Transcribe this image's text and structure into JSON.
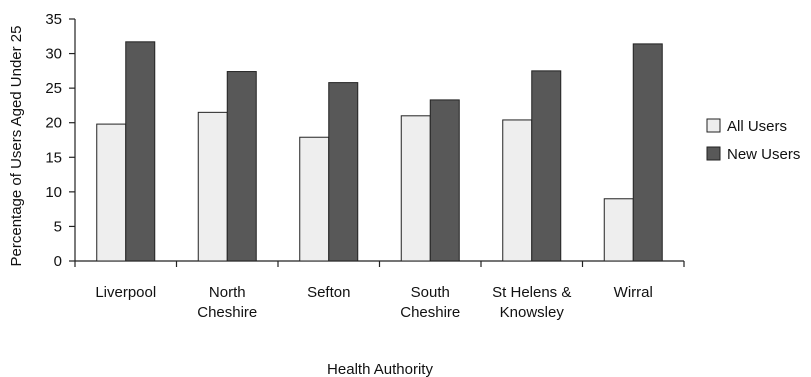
{
  "chart_data": {
    "type": "bar",
    "title": "",
    "xlabel": "Health Authority",
    "ylabel": "Percentage of Users Aged Under 25",
    "ylim": [
      0,
      35
    ],
    "yticks": [
      0,
      5,
      10,
      15,
      20,
      25,
      30,
      35
    ],
    "categories": [
      [
        "Liverpool"
      ],
      [
        "North",
        "Cheshire"
      ],
      [
        "Sefton"
      ],
      [
        "South",
        "Cheshire"
      ],
      [
        "St Helens &",
        "Knowsley"
      ],
      [
        "Wirral"
      ]
    ],
    "series": [
      {
        "name": "All Users",
        "values": [
          19.8,
          21.5,
          17.9,
          21.0,
          20.4,
          9.0
        ],
        "color": "#eeeeee"
      },
      {
        "name": "New Users",
        "values": [
          31.7,
          27.4,
          25.8,
          23.3,
          27.5,
          31.4
        ],
        "color": "#585858"
      }
    ],
    "grid": false,
    "legend_position": "right"
  }
}
